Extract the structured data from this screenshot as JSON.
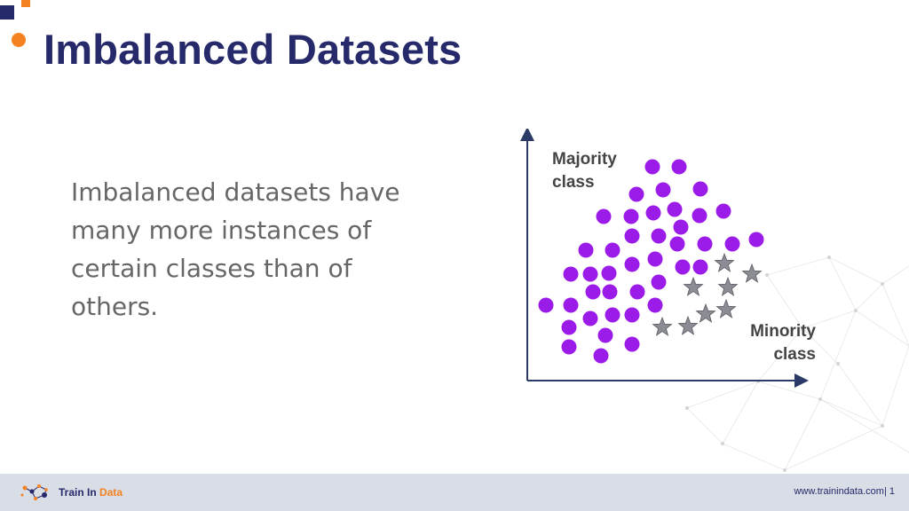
{
  "slide": {
    "title": "Imbalanced Datasets",
    "body_text": "Imbalanced datasets have many more instances of certain classes than of others."
  },
  "diagram": {
    "majority_label": "Majority class",
    "minority_label": "Minority class",
    "majority_color": "#9b1be8",
    "minority_color": "#8c8c94",
    "majority_marker": "circle",
    "minority_marker": "star"
  },
  "footer": {
    "logo_text_main": "Train In",
    "logo_text_accent": "Data",
    "url": "www.trainindata.com",
    "separator": "|",
    "page_number": "1"
  },
  "colors": {
    "navy": "#262a6b",
    "orange": "#f58220",
    "footer_bg": "#d8dde6"
  }
}
